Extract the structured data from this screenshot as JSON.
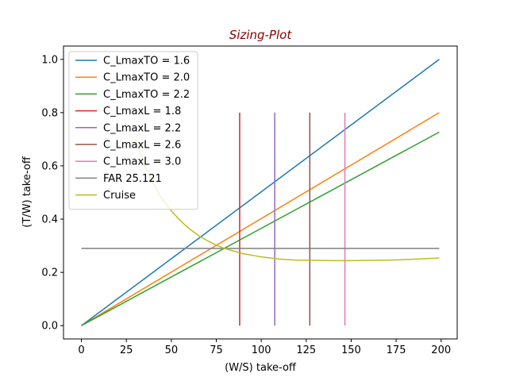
{
  "chart_data": {
    "type": "line",
    "title": "Sizing-Plot",
    "title_color": "#8b0000",
    "xlabel": "(W/S) take-off",
    "ylabel": "(T/W) take-off",
    "xlim": [
      -9.95,
      208.95
    ],
    "ylim": [
      -0.05,
      1.05
    ],
    "xticks": [
      0,
      25,
      50,
      75,
      100,
      125,
      150,
      175,
      200
    ],
    "yticks": [
      0.0,
      0.2,
      0.4,
      0.6,
      0.8,
      1.0
    ],
    "ytick_labels": [
      "0.0",
      "0.2",
      "0.4",
      "0.6",
      "0.8",
      "1.0"
    ],
    "legend_position": "upper-left",
    "grid": false,
    "series": [
      {
        "name": "C_LmaxTO = 1.6",
        "kind": "line",
        "color": "#1f77b4",
        "x": [
          0,
          199
        ],
        "y": [
          0,
          1.0
        ]
      },
      {
        "name": "C_LmaxTO = 2.0",
        "kind": "line",
        "color": "#ff7f0e",
        "x": [
          0,
          199
        ],
        "y": [
          0,
          0.8
        ]
      },
      {
        "name": "C_LmaxTO = 2.2",
        "kind": "line",
        "color": "#2ca02c",
        "x": [
          0,
          199
        ],
        "y": [
          0,
          0.727
        ]
      },
      {
        "name": "C_LmaxL = 1.8",
        "kind": "vline",
        "color": "#d62728",
        "x": [
          88,
          88
        ],
        "y": [
          0,
          0.8
        ]
      },
      {
        "name": "C_LmaxL = 2.2",
        "kind": "vline",
        "color": "#9467bd",
        "x": [
          107.5,
          107.5
        ],
        "y": [
          0,
          0.8
        ]
      },
      {
        "name": "C_LmaxL = 2.6",
        "kind": "vline",
        "color": "#8c564b",
        "x": [
          127,
          127
        ],
        "y": [
          0,
          0.8
        ]
      },
      {
        "name": "C_LmaxL = 3.0",
        "kind": "vline",
        "color": "#e377c2",
        "x": [
          146.5,
          146.5
        ],
        "y": [
          0,
          0.8
        ]
      },
      {
        "name": "FAR 25.121",
        "kind": "line",
        "color": "#7f7f7f",
        "x": [
          0,
          199
        ],
        "y": [
          0.29,
          0.29
        ]
      },
      {
        "name": "Cruise",
        "kind": "curve",
        "color": "#bcbd22",
        "x": [
          30,
          35,
          40,
          45,
          50,
          55,
          60,
          65,
          70,
          75,
          80,
          90,
          100,
          110,
          120,
          130,
          140,
          150,
          160,
          170,
          180,
          190,
          199
        ],
        "y": [
          0.7,
          0.605,
          0.532,
          0.475,
          0.431,
          0.394,
          0.364,
          0.339,
          0.319,
          0.302,
          0.289,
          0.27,
          0.258,
          0.25,
          0.246,
          0.245,
          0.244,
          0.244,
          0.245,
          0.246,
          0.248,
          0.251,
          0.254
        ]
      }
    ]
  }
}
